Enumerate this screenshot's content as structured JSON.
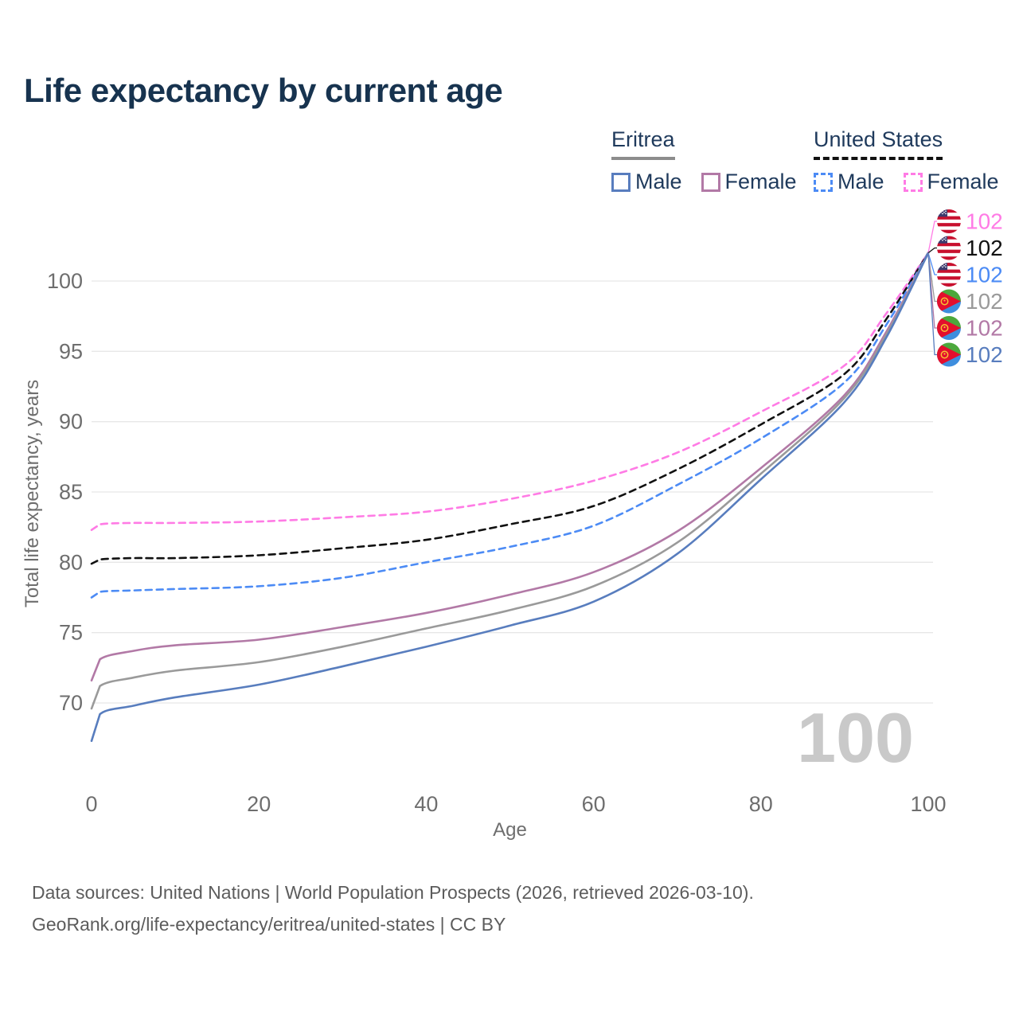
{
  "header": {
    "title": "Life expectancy by current age"
  },
  "legend": {
    "eritrea": {
      "title": "Eritrea",
      "male": "Male",
      "female": "Female"
    },
    "us": {
      "title": "United States",
      "male": "Male",
      "female": "Female"
    }
  },
  "footer": {
    "line1": "Data sources: United Nations | World Population Prospects (2026, retrieved 2026-03-10).",
    "line2": "GeoRank.org/life-expectancy/eritrea/united-states | CC BY"
  },
  "colors": {
    "title": "#17334F",
    "legend_text": "#1F3A5C",
    "eritrea_male": "#587DBE",
    "eritrea_female": "#B279A6",
    "eritrea_all": "#9A9A9A",
    "us_male": "#4C8BF5",
    "us_female": "#FF7BE5",
    "us_all": "#111111",
    "grid": "#E7E7E7",
    "ticks": "#6E6E6E",
    "watermark": "#C9C9C9"
  },
  "chart_data": {
    "type": "line",
    "title": "Life expectancy by current age",
    "xlabel": "Age",
    "ylabel": "Total life expectancy, years",
    "xlim": [
      0,
      100
    ],
    "ylim": [
      66,
      103
    ],
    "xticks": [
      0,
      20,
      40,
      60,
      80,
      100
    ],
    "yticks": [
      70,
      75,
      80,
      85,
      90,
      95,
      100
    ],
    "grid": "horizontal",
    "legend_position": "top-right",
    "x": [
      0,
      1,
      5,
      10,
      20,
      30,
      40,
      50,
      60,
      70,
      80,
      90,
      95,
      100
    ],
    "series": [
      {
        "key": "us_female",
        "country": "United States",
        "sex": "Female",
        "color": "#FF7BE5",
        "style": "dashed",
        "values": [
          82.3,
          82.7,
          82.8,
          82.8,
          82.9,
          83.2,
          83.6,
          84.5,
          85.8,
          87.8,
          90.7,
          94.0,
          97.7,
          102
        ]
      },
      {
        "key": "us_all",
        "country": "United States",
        "sex": "Both",
        "color": "#111111",
        "style": "dashed",
        "values": [
          79.9,
          80.2,
          80.3,
          80.3,
          80.5,
          81.0,
          81.6,
          82.7,
          84.0,
          86.6,
          89.8,
          93.4,
          97.3,
          102
        ]
      },
      {
        "key": "us_male",
        "country": "United States",
        "sex": "Male",
        "color": "#4C8BF5",
        "style": "dashed",
        "values": [
          77.5,
          77.9,
          78.0,
          78.1,
          78.3,
          78.9,
          80.0,
          81.1,
          82.6,
          85.5,
          88.8,
          92.8,
          96.9,
          102
        ]
      },
      {
        "key": "er_female",
        "country": "Eritrea",
        "sex": "Female",
        "color": "#B279A6",
        "style": "solid",
        "values": [
          71.6,
          73.1,
          73.7,
          74.1,
          74.5,
          75.4,
          76.4,
          77.7,
          79.3,
          82.2,
          86.7,
          91.9,
          96.4,
          102
        ]
      },
      {
        "key": "er_all",
        "country": "Eritrea",
        "sex": "Both",
        "color": "#9A9A9A",
        "style": "solid",
        "values": [
          69.6,
          71.2,
          71.8,
          72.3,
          72.9,
          74.0,
          75.3,
          76.6,
          78.3,
          81.4,
          86.3,
          91.7,
          96.2,
          102
        ]
      },
      {
        "key": "er_male",
        "country": "Eritrea",
        "sex": "Male",
        "color": "#587DBE",
        "style": "solid",
        "values": [
          67.3,
          69.2,
          69.8,
          70.4,
          71.3,
          72.6,
          74.0,
          75.5,
          77.2,
          80.6,
          85.9,
          91.4,
          96.0,
          102
        ]
      }
    ],
    "end_labels": [
      {
        "flag": "us",
        "value": "102",
        "color": "#FF7BE5",
        "series": "us_female"
      },
      {
        "flag": "us",
        "value": "102",
        "color": "#111111",
        "series": "us_all"
      },
      {
        "flag": "us",
        "value": "102",
        "color": "#4C8BF5",
        "series": "us_male"
      },
      {
        "flag": "eritrea",
        "value": "102",
        "color": "#9A9A9A",
        "series": "er_all"
      },
      {
        "flag": "eritrea",
        "value": "102",
        "color": "#B279A6",
        "series": "er_female"
      },
      {
        "flag": "eritrea",
        "value": "102",
        "color": "#587DBE",
        "series": "er_male"
      }
    ],
    "watermark": "100"
  }
}
